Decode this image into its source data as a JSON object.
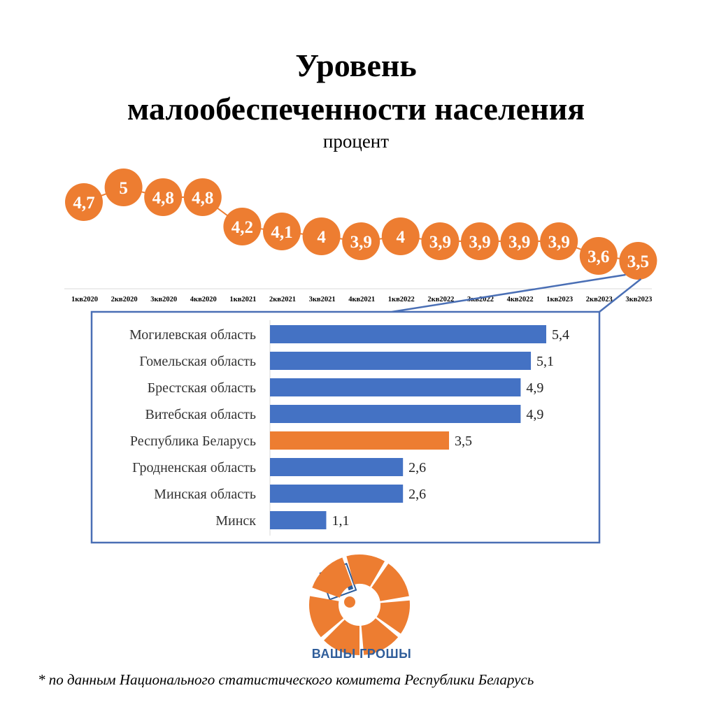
{
  "title": {
    "line1": "Уровень",
    "line2": "малообеспеченности населения",
    "unit": "процент"
  },
  "colors": {
    "orange": "#ed7d31",
    "blue": "#4472c4",
    "frame": "#4a6fb5",
    "brand": "#2f5d9a"
  },
  "chart_data": [
    {
      "type": "line",
      "title": "Уровень малообеспеченности населения",
      "ylabel": "процент",
      "x": [
        "1кв2020",
        "2кв2020",
        "3кв2020",
        "4кв2020",
        "1кв2021",
        "2кв2021",
        "3кв2021",
        "4кв2021",
        "1кв2022",
        "2кв2022",
        "3кв2022",
        "4кв2022",
        "1кв2023",
        "2кв2023",
        "3кв2023"
      ],
      "values": [
        4.7,
        5,
        4.8,
        4.8,
        4.2,
        4.1,
        4,
        3.9,
        4,
        3.9,
        3.9,
        3.9,
        3.9,
        3.6,
        3.5
      ],
      "labels": [
        "4,7",
        "5",
        "4,8",
        "4,8",
        "4,2",
        "4,1",
        "4",
        "3,9",
        "4",
        "3,9",
        "3,9",
        "3,9",
        "3,9",
        "3,6",
        "3,5"
      ],
      "ylim": [
        3.5,
        5.0
      ]
    },
    {
      "type": "bar",
      "orientation": "horizontal",
      "period": "3кв2023",
      "categories": [
        "Могилевская область",
        "Гомельская область",
        "Брестская область",
        "Витебская область",
        "Республика Беларусь",
        "Гродненская область",
        "Минская область",
        "Минск"
      ],
      "values": [
        5.4,
        5.1,
        4.9,
        4.9,
        3.5,
        2.6,
        2.6,
        1.1
      ],
      "labels": [
        "5,4",
        "5,1",
        "4,9",
        "4,9",
        "3,5",
        "2,6",
        "2,6",
        "1,1"
      ],
      "highlight": "Республика Беларусь",
      "xlim": [
        0,
        5.4
      ]
    }
  ],
  "brand": {
    "name": "ВАШЫ ГРОШЫ"
  },
  "footnote": "* по данным Национального статистического комитета Республики Беларусь"
}
